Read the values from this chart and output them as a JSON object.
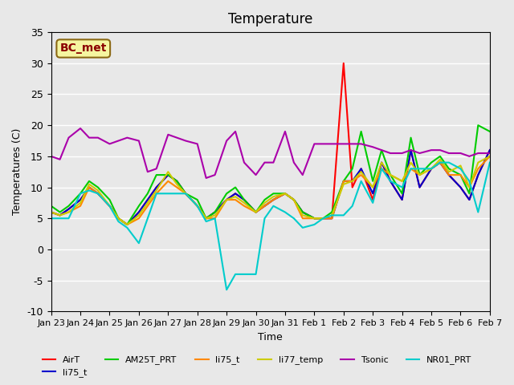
{
  "title": "Temperature",
  "xlabel": "Time",
  "ylabel": "Temperatures (C)",
  "ylim": [
    -10,
    35
  ],
  "xlim": [
    0,
    15
  ],
  "xtick_labels": [
    "Jan 23",
    "Jan 24",
    "Jan 25",
    "Jan 26",
    "Jan 27",
    "Jan 28",
    "Jan 29",
    "Jan 30",
    "Jan 31",
    "Feb 1",
    "Feb 2",
    "Feb 3",
    "Feb 4",
    "Feb 5",
    "Feb 6",
    "Feb 7"
  ],
  "background_color": "#e8e8e8",
  "plot_bg_color": "#e8e8e8",
  "annotation_text": "BC_met",
  "annotation_bg": "#f5f5a0",
  "annotation_border": "#8B6914",
  "series": {
    "AirT": {
      "color": "#ff0000",
      "x": [
        0,
        0.3,
        0.6,
        1.0,
        1.3,
        1.6,
        2.0,
        2.3,
        2.6,
        3.0,
        3.3,
        3.6,
        4.0,
        4.3,
        4.6,
        5.0,
        5.3,
        5.6,
        6.0,
        6.3,
        6.6,
        7.0,
        7.3,
        7.6,
        8.0,
        8.3,
        8.6,
        9.0,
        9.3,
        9.6,
        10.0,
        10.3,
        10.6,
        11.0,
        11.3,
        11.6,
        12.0,
        12.3,
        12.6,
        13.0,
        13.3,
        13.6,
        14.0,
        14.3,
        14.6,
        15.0
      ],
      "y": [
        6,
        5.5,
        6.5,
        8,
        10,
        9,
        7,
        5,
        4,
        6,
        8,
        10,
        12,
        11,
        9,
        7,
        5,
        6,
        8,
        9,
        8,
        6,
        7,
        8,
        9,
        8,
        6,
        5,
        5,
        5,
        30,
        10,
        13,
        8,
        14,
        11,
        8,
        16,
        10,
        13,
        14,
        12,
        10,
        8,
        12,
        16
      ]
    },
    "li75_t": {
      "color": "#0000cc",
      "x": [
        0,
        0.3,
        0.6,
        1.0,
        1.3,
        1.6,
        2.0,
        2.3,
        2.6,
        3.0,
        3.3,
        3.6,
        4.0,
        4.3,
        4.6,
        5.0,
        5.3,
        5.6,
        6.0,
        6.3,
        6.6,
        7.0,
        7.3,
        7.6,
        8.0,
        8.3,
        8.6,
        9.0,
        9.3,
        9.6,
        10.0,
        10.3,
        10.6,
        11.0,
        11.3,
        11.6,
        12.0,
        12.3,
        12.6,
        13.0,
        13.3,
        13.6,
        14.0,
        14.3,
        14.6,
        15.0
      ],
      "y": [
        6,
        5.5,
        6.5,
        8,
        10,
        9,
        7,
        5,
        4,
        6,
        8,
        10,
        12,
        11,
        9,
        7,
        5,
        6,
        8,
        9,
        8,
        6,
        7,
        8,
        9,
        8,
        6,
        5,
        5,
        5,
        11,
        11,
        13,
        9,
        14,
        11,
        8,
        16,
        10,
        13,
        14,
        12,
        10,
        8,
        12,
        16
      ]
    },
    "AM25T_PRT": {
      "color": "#00cc00",
      "x": [
        0,
        0.3,
        0.6,
        1.0,
        1.3,
        1.6,
        2.0,
        2.3,
        2.6,
        3.0,
        3.3,
        3.6,
        4.0,
        4.3,
        4.6,
        5.0,
        5.3,
        5.6,
        6.0,
        6.3,
        6.6,
        7.0,
        7.3,
        7.6,
        8.0,
        8.3,
        8.6,
        9.0,
        9.3,
        9.6,
        10.0,
        10.3,
        10.6,
        11.0,
        11.3,
        11.6,
        12.0,
        12.3,
        12.6,
        13.0,
        13.3,
        13.6,
        14.0,
        14.3,
        14.6,
        15.0
      ],
      "y": [
        7,
        6,
        7,
        9,
        11,
        10,
        8,
        5,
        4,
        7,
        9,
        12,
        12,
        11,
        9,
        8,
        5,
        6,
        9,
        10,
        8,
        6,
        8,
        9,
        9,
        8,
        6,
        5,
        5,
        6,
        11,
        13,
        19,
        11,
        16,
        12,
        9,
        18,
        12,
        14,
        15,
        13,
        12,
        9,
        20,
        19
      ]
    },
    "li75_t2": {
      "color": "#ff8800",
      "x": [
        0,
        0.3,
        0.6,
        1.0,
        1.3,
        1.6,
        2.0,
        2.3,
        2.6,
        3.0,
        3.3,
        3.6,
        4.0,
        4.3,
        4.6,
        5.0,
        5.3,
        5.6,
        6.0,
        6.3,
        6.6,
        7.0,
        7.3,
        7.6,
        8.0,
        8.3,
        8.6,
        9.0,
        9.3,
        9.6,
        10.0,
        10.3,
        10.6,
        11.0,
        11.3,
        11.6,
        12.0,
        12.3,
        12.6,
        13.0,
        13.3,
        13.6,
        14.0,
        14.3,
        14.6,
        15.0
      ],
      "y": [
        6,
        5.5,
        6,
        7,
        10,
        9,
        7,
        5,
        4,
        5,
        7,
        9,
        11,
        10,
        9,
        7,
        5,
        5,
        8,
        8,
        7,
        6,
        7,
        8,
        9,
        8,
        5,
        5,
        5,
        5,
        11,
        11,
        12,
        10,
        13,
        12,
        11,
        13,
        12,
        13,
        14,
        12,
        12,
        10,
        13,
        15
      ]
    },
    "li77_temp": {
      "color": "#cccc00",
      "x": [
        0,
        0.3,
        0.6,
        1.0,
        1.3,
        1.6,
        2.0,
        2.3,
        2.6,
        3.0,
        3.3,
        3.6,
        4.0,
        4.3,
        4.6,
        5.0,
        5.3,
        5.6,
        6.0,
        6.3,
        6.6,
        7.0,
        7.3,
        7.6,
        8.0,
        8.3,
        8.6,
        9.0,
        9.3,
        9.6,
        10.0,
        10.3,
        10.6,
        11.0,
        11.3,
        11.6,
        12.0,
        12.3,
        12.6,
        13.0,
        13.3,
        13.6,
        14.0,
        14.3,
        14.6,
        15.0
      ],
      "y": [
        6,
        5.5,
        6,
        7.5,
        10.5,
        9.5,
        7,
        5,
        4,
        5.5,
        7.5,
        9.5,
        12.5,
        10.5,
        9,
        7,
        5,
        5.5,
        8,
        8.5,
        7.5,
        6,
        7.5,
        8.5,
        9,
        8,
        5.5,
        5,
        5,
        5.5,
        10.5,
        11,
        12.5,
        10,
        14,
        12,
        11,
        14,
        12,
        13,
        14.5,
        12.5,
        13.5,
        10,
        14,
        15
      ]
    },
    "Tsonic": {
      "color": "#aa00aa",
      "x": [
        0,
        0.3,
        0.6,
        1.0,
        1.3,
        1.6,
        2.0,
        2.3,
        2.6,
        3.0,
        3.3,
        3.6,
        4.0,
        4.3,
        4.6,
        5.0,
        5.3,
        5.6,
        6.0,
        6.3,
        6.6,
        7.0,
        7.3,
        7.6,
        8.0,
        8.3,
        8.6,
        9.0,
        9.3,
        9.6,
        10.0,
        10.3,
        10.6,
        11.0,
        11.3,
        11.6,
        12.0,
        12.3,
        12.6,
        13.0,
        13.3,
        13.6,
        14.0,
        14.3,
        14.6,
        15.0
      ],
      "y": [
        15,
        14.5,
        18,
        19.5,
        18,
        18,
        17,
        17.5,
        18,
        17.5,
        12.5,
        13,
        18.5,
        18,
        17.5,
        17,
        11.5,
        12,
        17.5,
        19,
        14,
        12,
        14,
        14,
        19,
        14,
        12,
        17,
        17,
        17,
        17,
        17,
        17,
        16.5,
        16,
        15.5,
        15.5,
        16,
        15.5,
        16,
        16,
        15.5,
        15.5,
        15,
        15.5,
        15.5
      ]
    },
    "NR01_PRT": {
      "color": "#00cccc",
      "x": [
        0,
        0.3,
        0.6,
        1.0,
        1.3,
        1.6,
        2.0,
        2.3,
        2.6,
        3.0,
        3.3,
        3.6,
        4.0,
        4.3,
        4.6,
        5.0,
        5.3,
        5.6,
        6.0,
        6.3,
        6.6,
        7.0,
        7.3,
        7.6,
        8.0,
        8.3,
        8.6,
        9.0,
        9.3,
        9.6,
        10.0,
        10.3,
        10.6,
        11.0,
        11.3,
        11.6,
        12.0,
        12.3,
        12.6,
        13.0,
        13.3,
        13.6,
        14.0,
        14.3,
        14.6,
        15.0
      ],
      "y": [
        5,
        5,
        5,
        9,
        9.5,
        9,
        7,
        4.5,
        3.5,
        1,
        5,
        9,
        9,
        9,
        9,
        7,
        4.5,
        5,
        -6.5,
        -4,
        -4,
        -4,
        5,
        7,
        6,
        5,
        3.5,
        4,
        5,
        5.5,
        5.5,
        7,
        11,
        7.5,
        13,
        11,
        10,
        13,
        13,
        13,
        14,
        14,
        13,
        11,
        6,
        14
      ]
    }
  }
}
